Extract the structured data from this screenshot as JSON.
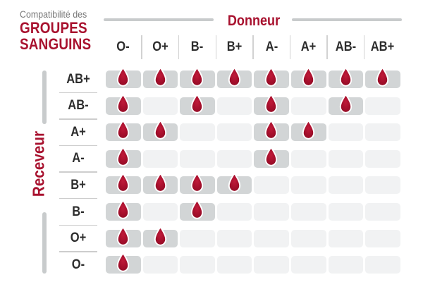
{
  "title": {
    "prefix": "Compatibilité des",
    "line1": "GROUPES",
    "line2": "SANGUINS"
  },
  "axes": {
    "donor_label": "Donneur",
    "receiver_label": "Receveur"
  },
  "icons": {
    "compatible_marker": "blood-drop-icon"
  },
  "colors": {
    "accent_red": "#a8112e",
    "drop_red": "#a60f2c",
    "drop_highlight": "#bf1a39",
    "drop_shadow": "#8c0b23",
    "filled_cell_gray": "#d2d5d6",
    "empty_cell_gray": "#f1f2f3",
    "axis_bar_gray": "#c8cbcc",
    "divider_gray": "#cdcdcd",
    "label_dark": "#2d2d2d",
    "subtitle_gray": "#787878",
    "background": "#ffffff"
  },
  "chart_data": {
    "type": "heatmap",
    "title": "Compatibilité des groupes sanguins",
    "x_axis_label": "Donneur",
    "y_axis_label": "Receveur",
    "columns": [
      "O-",
      "O+",
      "B-",
      "B+",
      "A-",
      "A+",
      "AB-",
      "AB+"
    ],
    "rows": [
      "AB+",
      "AB-",
      "A+",
      "A-",
      "B+",
      "B-",
      "O+",
      "O-"
    ],
    "cell_values": "1 = compatible (goutte de sang affichée), 0 = incompatible (case vide)",
    "matrix": [
      [
        1,
        1,
        1,
        1,
        1,
        1,
        1,
        1
      ],
      [
        1,
        0,
        1,
        0,
        1,
        0,
        1,
        0
      ],
      [
        1,
        1,
        0,
        0,
        1,
        1,
        0,
        0
      ],
      [
        1,
        0,
        0,
        0,
        1,
        0,
        0,
        0
      ],
      [
        1,
        1,
        1,
        1,
        0,
        0,
        0,
        0
      ],
      [
        1,
        0,
        1,
        0,
        0,
        0,
        0,
        0
      ],
      [
        1,
        1,
        0,
        0,
        0,
        0,
        0,
        0
      ],
      [
        1,
        0,
        0,
        0,
        0,
        0,
        0,
        0
      ]
    ],
    "legend_position": "none",
    "grid": "rounded cells, gray = compatible with drop icon, light gray = incompatible"
  }
}
